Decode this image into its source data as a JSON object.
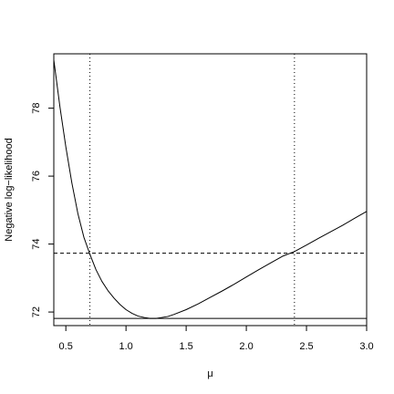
{
  "chart_data": {
    "type": "line",
    "title": "",
    "xlabel": "μ",
    "ylabel": "Negative log−likelihood",
    "xlim": [
      0.4,
      3.0
    ],
    "ylim": [
      71.6,
      79.6
    ],
    "xticks": [
      {
        "value": 0.5,
        "label": "0.5"
      },
      {
        "value": 1.0,
        "label": "1.0"
      },
      {
        "value": 1.5,
        "label": "1.5"
      },
      {
        "value": 2.0,
        "label": "2.0"
      },
      {
        "value": 2.5,
        "label": "2.5"
      },
      {
        "value": 3.0,
        "label": "3.0"
      }
    ],
    "yticks": [
      {
        "value": 72,
        "label": "72"
      },
      {
        "value": 74,
        "label": "74"
      },
      {
        "value": 76,
        "label": "76"
      },
      {
        "value": 78,
        "label": "78"
      }
    ],
    "grid": false,
    "series": [
      {
        "x": [
          0.4,
          0.45,
          0.5,
          0.55,
          0.6,
          0.65,
          0.7,
          0.75,
          0.8,
          0.85,
          0.9,
          0.95,
          1.0,
          1.05,
          1.1,
          1.15,
          1.2,
          1.25,
          1.3,
          1.35,
          1.4,
          1.5,
          1.6,
          1.7,
          1.8,
          1.9,
          2.0,
          2.1,
          2.2,
          2.3,
          2.4,
          2.5,
          2.6,
          2.7,
          2.8,
          2.9,
          3.0
        ],
        "y": [
          79.42,
          78.06,
          76.86,
          75.8,
          74.9,
          74.2,
          73.7,
          73.25,
          72.9,
          72.63,
          72.41,
          72.22,
          72.07,
          71.96,
          71.88,
          71.84,
          71.81,
          71.81,
          71.84,
          71.87,
          71.93,
          72.07,
          72.24,
          72.43,
          72.62,
          72.82,
          73.03,
          73.24,
          73.44,
          73.64,
          73.78,
          73.97,
          74.17,
          74.36,
          74.55,
          74.76,
          74.96
        ]
      }
    ],
    "reference_lines": [
      {
        "orientation": "horizontal",
        "value": 71.81,
        "style": "solid"
      },
      {
        "orientation": "horizontal",
        "value": 73.73,
        "style": "dashed"
      },
      {
        "orientation": "vertical",
        "value": 0.7,
        "style": "dotted"
      },
      {
        "orientation": "vertical",
        "value": 2.4,
        "style": "dotted"
      }
    ]
  }
}
